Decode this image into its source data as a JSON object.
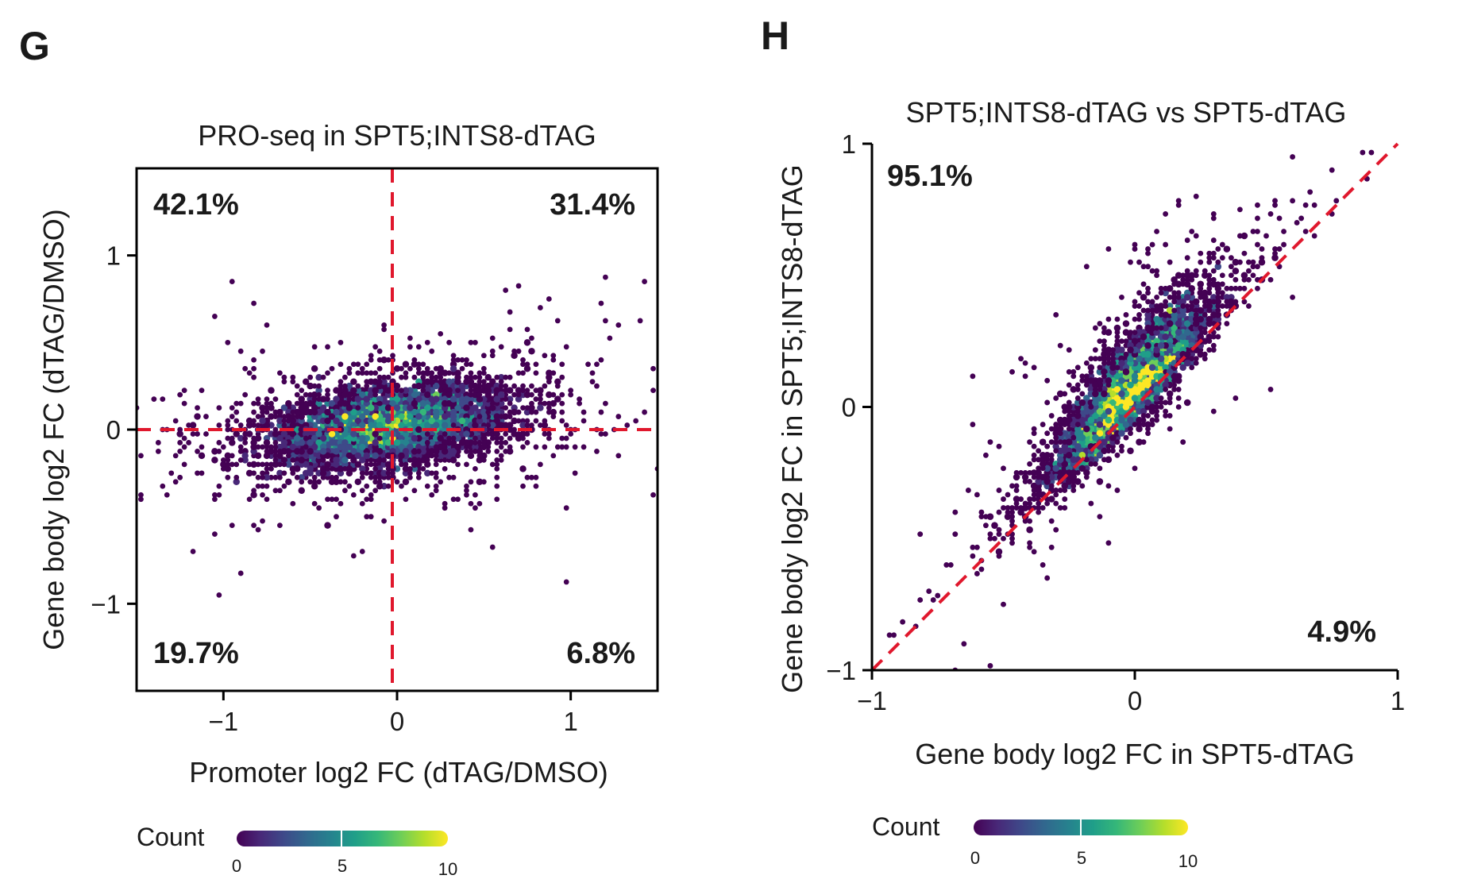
{
  "colors": {
    "refline": "#e0182d",
    "viridis": [
      "#440154",
      "#482878",
      "#3e4989",
      "#31688e",
      "#26828e",
      "#1f9e89",
      "#35b779",
      "#6ece58",
      "#b5de2b",
      "#fde725"
    ],
    "frame": "#000000"
  },
  "chart_data": [
    {
      "panel": "G",
      "type": "hexbin-scatter",
      "title": "PRO-seq in SPT5;INTS8-dTAG",
      "xlabel": "Promoter log2 FC (dTAG/DMSO)",
      "ylabel": "Gene body log2 FC (dTAG/DMSO)",
      "xlim": [
        -1.5,
        1.5
      ],
      "ylim": [
        -1.5,
        1.5
      ],
      "xticks": [
        {
          "value": -1,
          "label": "−1"
        },
        {
          "value": 0,
          "label": "0"
        },
        {
          "value": 1,
          "label": "1"
        }
      ],
      "yticks": [
        {
          "value": -1,
          "label": "−1"
        },
        {
          "value": 0,
          "label": "0"
        },
        {
          "value": 1,
          "label": "1"
        }
      ],
      "reference_lines": [
        "x=0",
        "y=0"
      ],
      "quadrant_labels": [
        {
          "position": "top-left",
          "text": "42.1%"
        },
        {
          "position": "top-right",
          "text": "31.4%"
        },
        {
          "position": "bottom-left",
          "text": "19.7%"
        },
        {
          "position": "bottom-right",
          "text": "6.8%"
        }
      ],
      "density": {
        "center": [
          -0.05,
          0.02
        ],
        "sd": [
          0.38,
          0.14
        ],
        "correlation": 0.35
      },
      "colorbar": {
        "title": "Count",
        "ticks": [
          "0",
          "5",
          "10"
        ],
        "range": [
          0,
          10
        ]
      }
    },
    {
      "panel": "H",
      "type": "hexbin-scatter",
      "title": "SPT5;INTS8-dTAG vs SPT5-dTAG",
      "xlabel": "Gene body log2 FC in SPT5-dTAG",
      "ylabel": "Gene body log2 FC in SPT5;INTS8-dTAG",
      "xlim": [
        -1,
        1
      ],
      "ylim": [
        -1,
        1
      ],
      "xticks": [
        {
          "value": -1,
          "label": "−1"
        },
        {
          "value": 0,
          "label": "0"
        },
        {
          "value": 1,
          "label": "1"
        }
      ],
      "yticks": [
        {
          "value": -1,
          "label": "−1"
        },
        {
          "value": 0,
          "label": "0"
        },
        {
          "value": 1,
          "label": "1"
        }
      ],
      "reference_lines": [
        "y=x"
      ],
      "quadrant_labels": [
        {
          "position": "top-left",
          "text": "95.1%"
        },
        {
          "position": "bottom-right",
          "text": "4.9%"
        }
      ],
      "density": {
        "center": [
          -0.02,
          0.05
        ],
        "sd": [
          0.16,
          0.2
        ],
        "correlation": 0.82
      },
      "colorbar": {
        "title": "Count",
        "ticks": [
          "0",
          "5",
          "10"
        ],
        "range": [
          0,
          10
        ]
      }
    }
  ]
}
